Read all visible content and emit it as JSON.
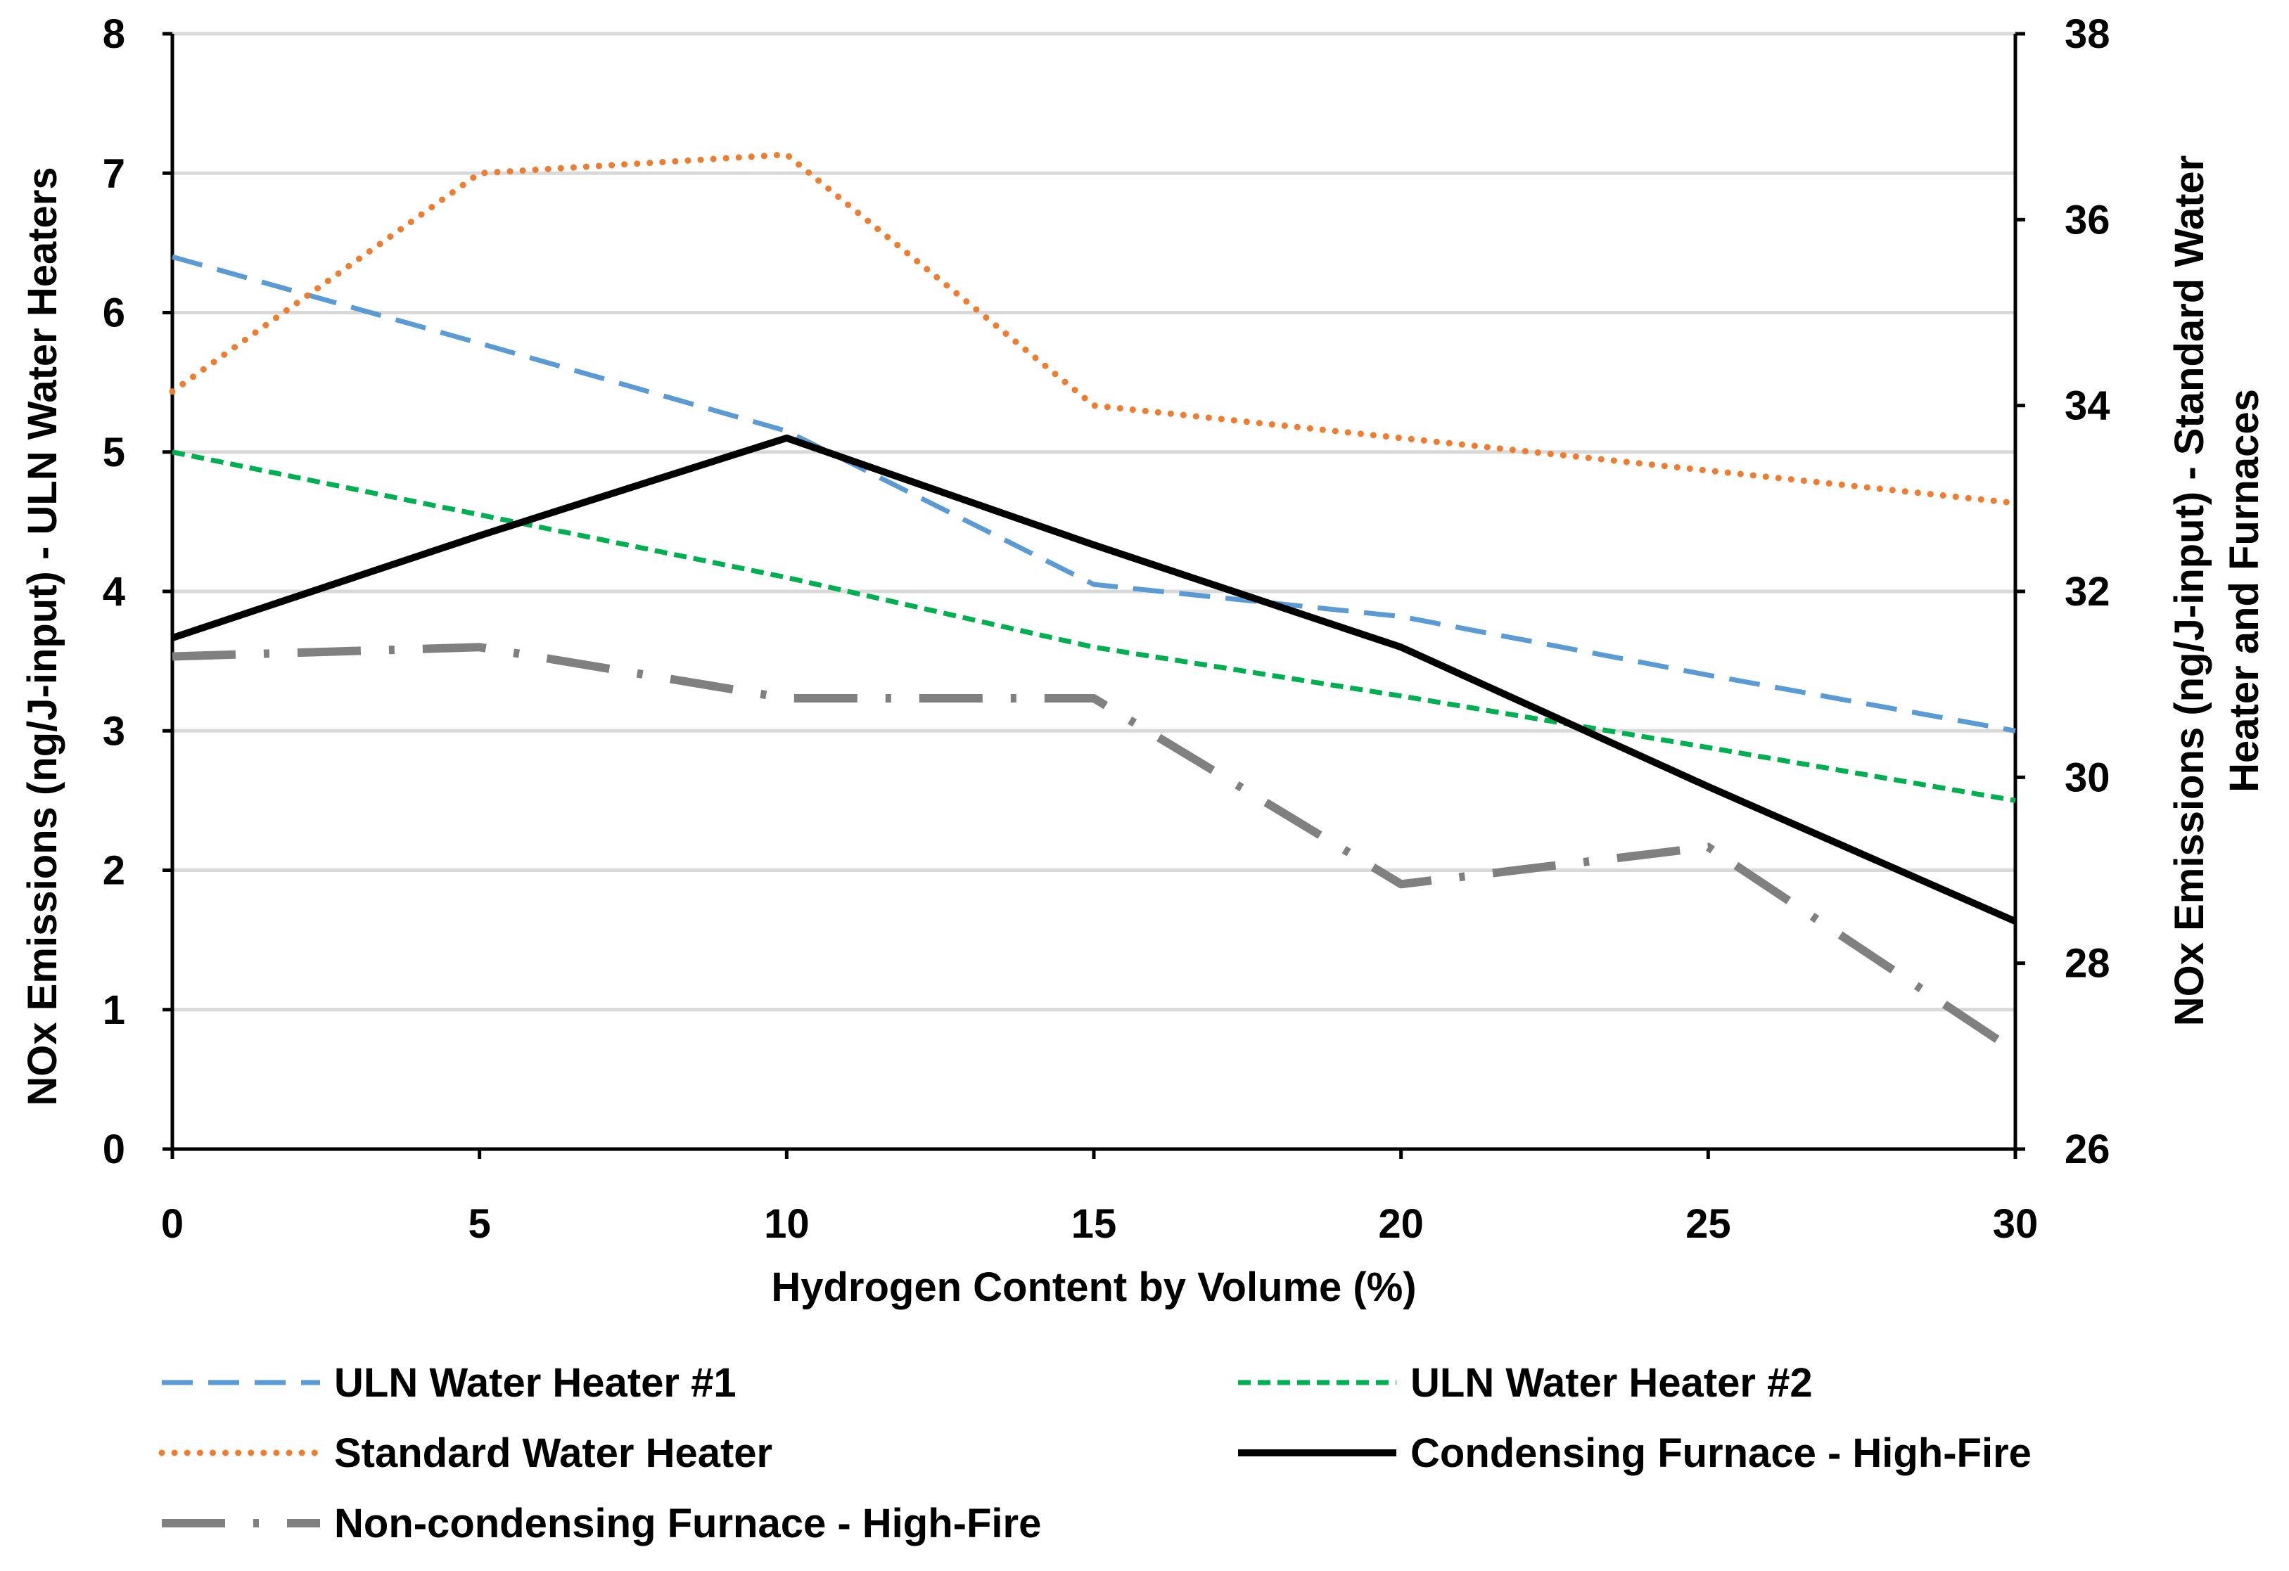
{
  "chart_data": {
    "type": "line",
    "x": [
      0,
      5,
      10,
      15,
      20,
      25,
      30
    ],
    "xlabel": "Hydrogen Content by Volume (%)",
    "ylabel_left": "NOx Emissions (ng/J-input) - ULN Water Heaters",
    "ylabel_right_line1": "NOx Emissions (ng/J-input) - Standard Water",
    "ylabel_right_line2": "Heater and Furnaces",
    "xlim": [
      0,
      30
    ],
    "ylim_left": [
      0,
      8
    ],
    "ylim_right": [
      26,
      38
    ],
    "xticks": [
      "0",
      "5",
      "10",
      "15",
      "20",
      "25",
      "30"
    ],
    "yticks_left": [
      "0",
      "1",
      "2",
      "3",
      "4",
      "5",
      "6",
      "7",
      "8"
    ],
    "yticks_right": [
      "26",
      "28",
      "30",
      "32",
      "34",
      "36",
      "38"
    ],
    "grid": true,
    "legend_position": "bottom",
    "series": [
      {
        "name": "ULN Water Heater #1",
        "axis": "left",
        "color": "#5B9BD5",
        "style": "dashed",
        "values": [
          6.4,
          5.78,
          5.15,
          4.05,
          3.82,
          3.4,
          3.0
        ]
      },
      {
        "name": "ULN Water Heater #2",
        "axis": "left",
        "color": "#00B050",
        "style": "short-dashed",
        "values": [
          5.0,
          4.55,
          4.1,
          3.6,
          3.25,
          2.88,
          2.5
        ]
      },
      {
        "name": "Standard Water Heater",
        "axis": "right",
        "color": "#ED7D31",
        "style": "dotted",
        "values": [
          34.15,
          36.5,
          36.7,
          34.0,
          33.65,
          33.3,
          32.95
        ]
      },
      {
        "name": "Condensing Furnace - High-Fire",
        "axis": "right",
        "color": "#000000",
        "style": "solid",
        "values": [
          31.5,
          32.6,
          33.65,
          32.5,
          31.4,
          29.9,
          28.45
        ]
      },
      {
        "name": "Non-condensing Furnace - High-Fire",
        "axis": "right",
        "color": "#808080",
        "style": "dash-dot",
        "values": [
          31.3,
          31.4,
          30.85,
          30.85,
          28.85,
          29.25,
          27.05
        ]
      }
    ]
  }
}
